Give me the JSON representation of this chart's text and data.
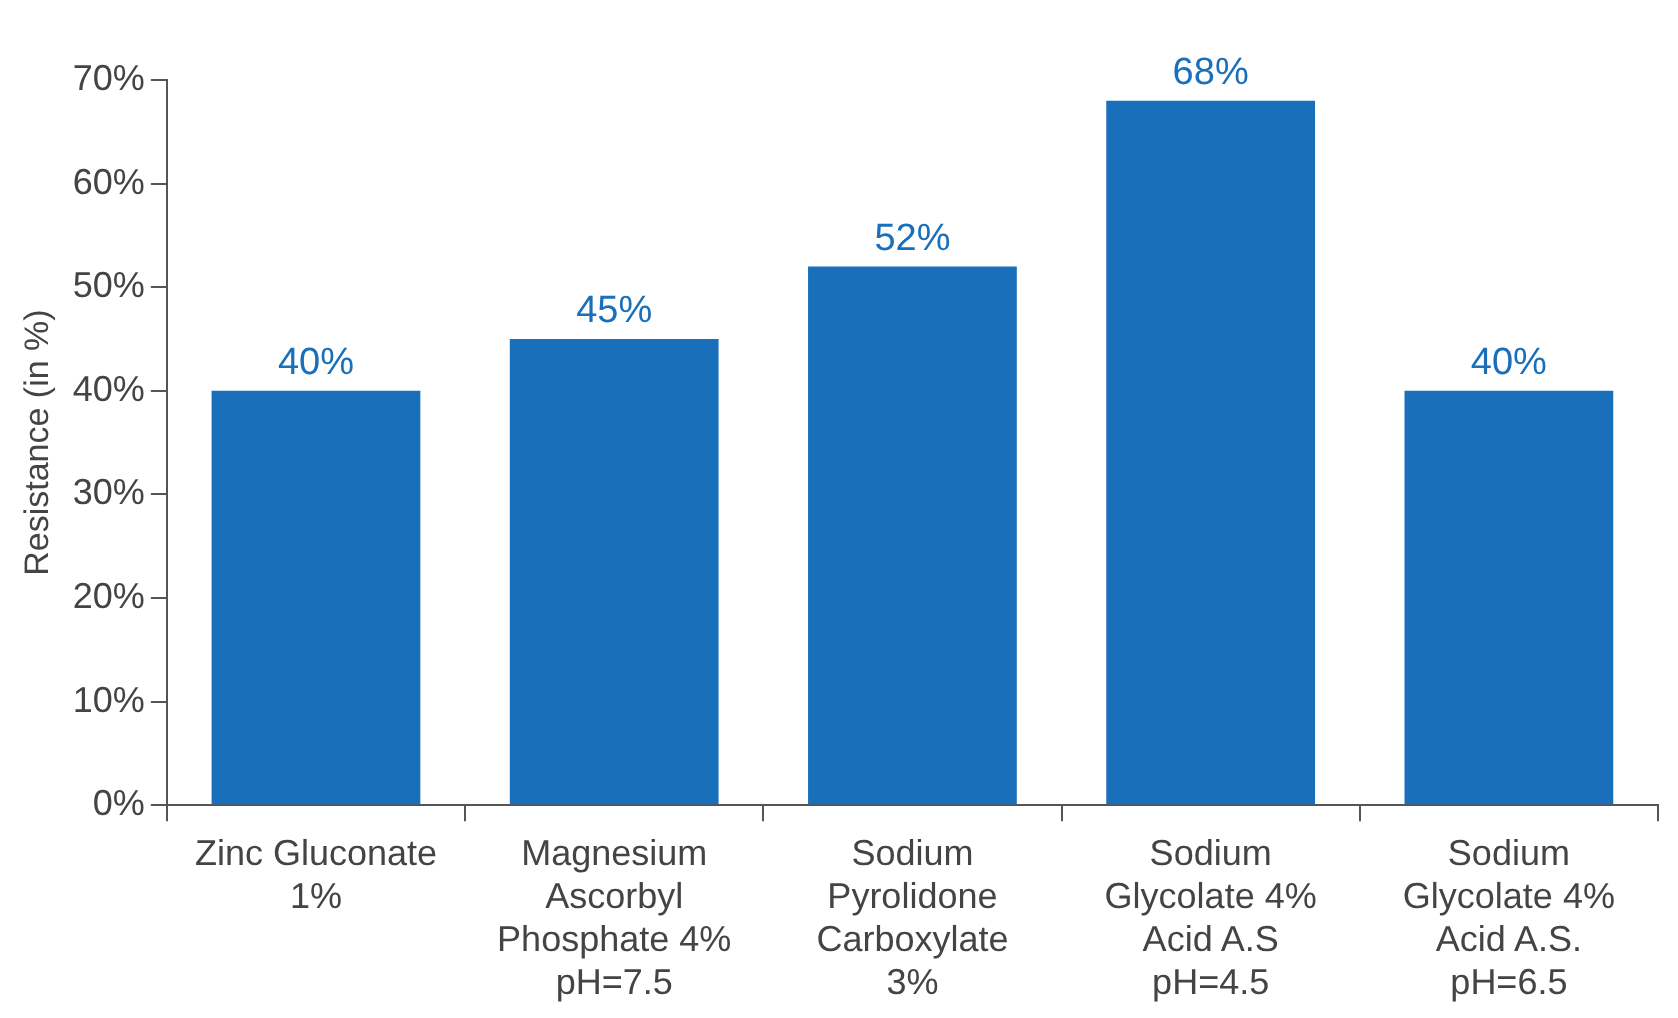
{
  "chart_data": {
    "type": "bar",
    "ylabel": "Resistance (in %)",
    "categories": [
      "Zinc Gluconate\n1%",
      "Magnesium\nAscorbyl\nPhosphate 4%\npH=7.5",
      "Sodium\nPyrolidone\nCarboxylate\n3%",
      "Sodium\nGlycolate 4%\nAcid A.S\npH=4.5",
      "Sodium\nGlycolate 4%\nAcid A.S.\npH=6.5"
    ],
    "values": [
      40,
      45,
      52,
      68,
      40
    ],
    "value_labels": [
      "40%",
      "45%",
      "52%",
      "68%",
      "40%"
    ],
    "color": "#1a6fba",
    "grid": false,
    "legend": false,
    "ylim": [
      0,
      70
    ],
    "yticks": [
      {
        "value": 0,
        "label": "0%"
      },
      {
        "value": 10,
        "label": "10%"
      },
      {
        "value": 20,
        "label": "20%"
      },
      {
        "value": 30,
        "label": "30%"
      },
      {
        "value": 40,
        "label": "40%"
      },
      {
        "value": 50,
        "label": "50%"
      },
      {
        "value": 60,
        "label": "60%"
      },
      {
        "value": 70,
        "label": "70%"
      }
    ]
  }
}
